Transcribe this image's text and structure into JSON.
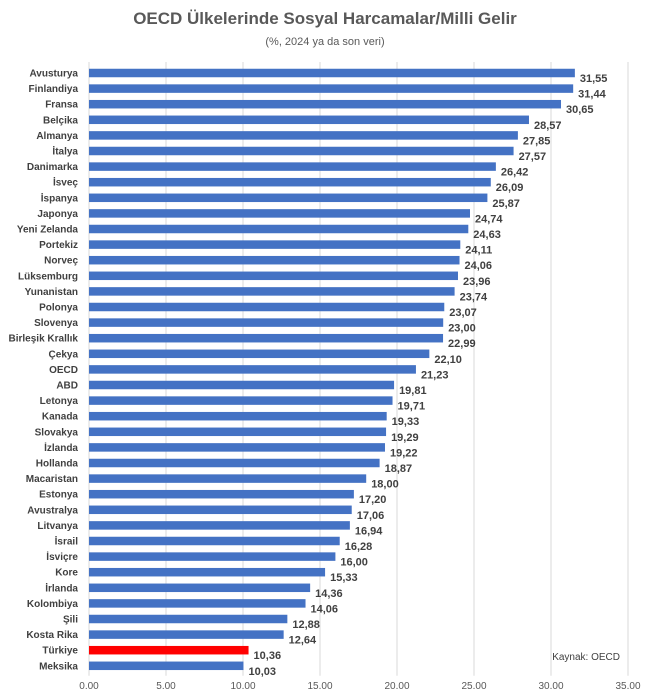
{
  "chart_data": {
    "type": "bar",
    "orientation": "horizontal",
    "title": "OECD Ülkelerinde Sosyal Harcamalar/Milli Gelir",
    "subtitle": "(%, 2024 ya da son veri)",
    "source": "Kaynak: OECD",
    "xlim": [
      0,
      35
    ],
    "xticks": [
      "0.00",
      "5.00",
      "10.00",
      "15.00",
      "20.00",
      "25.00",
      "30.00",
      "35.00"
    ],
    "grid": true,
    "colors": {
      "default": "#4472c4",
      "highlight": "#ff0000",
      "oecd_label": "#2e75b6"
    },
    "categories": [
      "Avusturya",
      "Finlandiya",
      "Fransa",
      "Belçika",
      "Almanya",
      "İtalya",
      "Danimarka",
      "İsveç",
      "İspanya",
      "Japonya",
      "Yeni Zelanda",
      "Portekiz",
      "Norveç",
      "Lüksemburg",
      "Yunanistan",
      "Polonya",
      "Slovenya",
      "Birleşik Krallık",
      "Çekya",
      "OECD",
      "ABD",
      "Letonya",
      "Kanada",
      "Slovakya",
      "İzlanda",
      "Hollanda",
      "Macaristan",
      "Estonya",
      "Avustralya",
      "Litvanya",
      "İsrail",
      "İsviçre",
      "Kore",
      "İrlanda",
      "Kolombiya",
      "Şili",
      "Kosta Rika",
      "Türkiye",
      "Meksika"
    ],
    "values": [
      31.55,
      31.44,
      30.65,
      28.57,
      27.85,
      27.57,
      26.42,
      26.09,
      25.87,
      24.74,
      24.63,
      24.11,
      24.06,
      23.96,
      23.74,
      23.07,
      23.0,
      22.99,
      22.1,
      21.23,
      19.81,
      19.71,
      19.33,
      19.29,
      19.22,
      18.87,
      18.0,
      17.2,
      17.06,
      16.94,
      16.28,
      16.0,
      15.33,
      14.36,
      14.06,
      12.88,
      12.64,
      10.36,
      10.03
    ],
    "value_labels": [
      "31,55",
      "31,44",
      "30,65",
      "28,57",
      "27,85",
      "27,57",
      "26,42",
      "26,09",
      "25,87",
      "24,74",
      "24,63",
      "24,11",
      "24,06",
      "23,96",
      "23,74",
      "23,07",
      "23,00",
      "22,99",
      "22,10",
      "21,23",
      "19,81",
      "19,71",
      "19,33",
      "19,29",
      "19,22",
      "18,87",
      "18,00",
      "17,20",
      "17,06",
      "16,94",
      "16,28",
      "16,00",
      "15,33",
      "14,36",
      "14,06",
      "12,88",
      "12,64",
      "10,36",
      "10,03"
    ],
    "highlight_category": "Türkiye",
    "label_highlight_category": "OECD"
  }
}
